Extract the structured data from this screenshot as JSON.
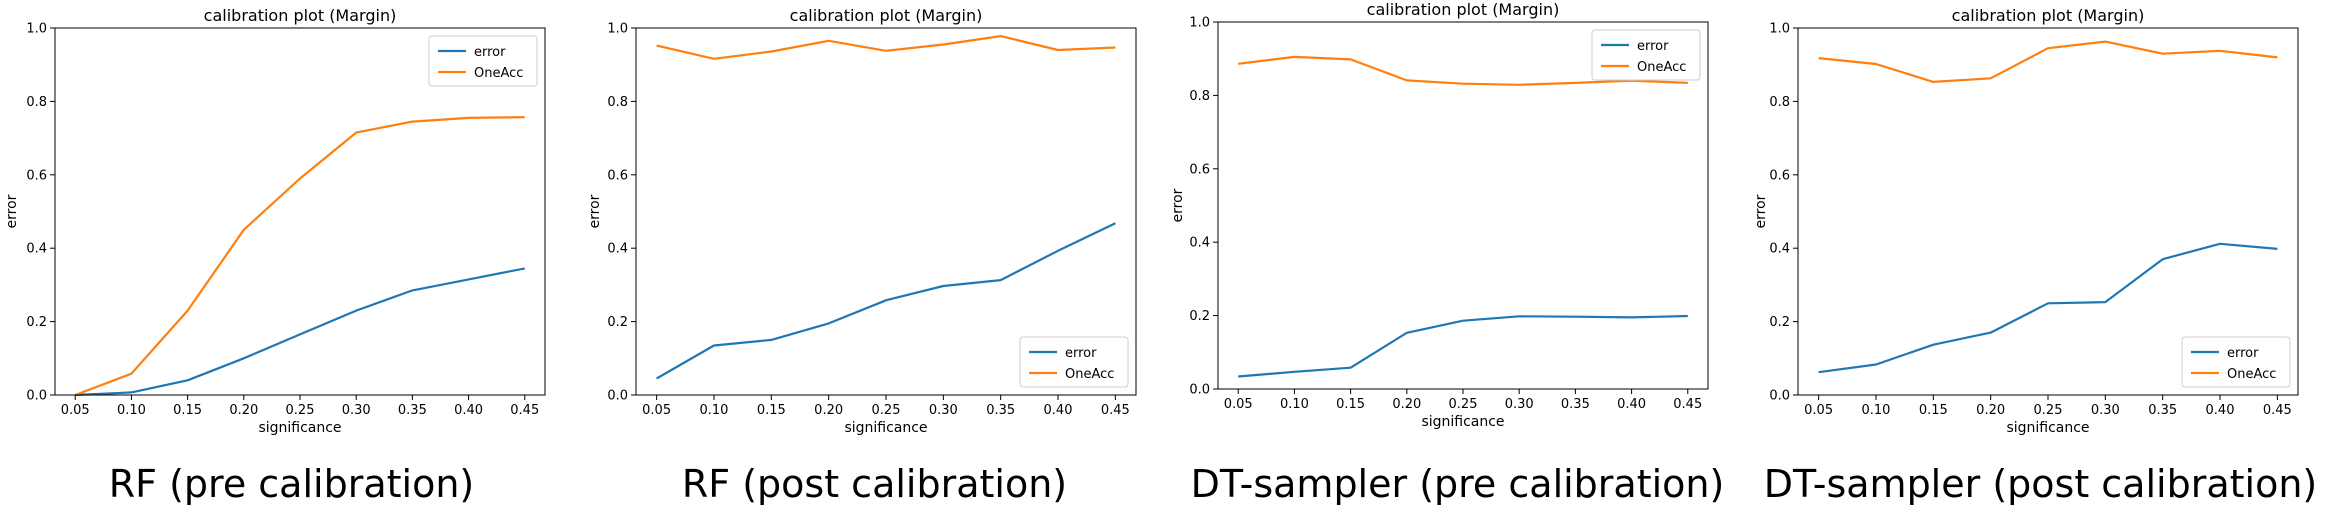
{
  "colors": {
    "error": "#1f77b4",
    "OneAcc": "#ff7f0e"
  },
  "chart_data": [
    {
      "type": "line",
      "title": "calibration plot (Margin)",
      "xlabel": "significance",
      "ylabel": "error",
      "caption": "RF (pre calibration)",
      "x": [
        0.05,
        0.1,
        0.15,
        0.2,
        0.25,
        0.3,
        0.35,
        0.4,
        0.45
      ],
      "x_ticks": [
        "0.05",
        "0.10",
        "0.15",
        "0.20",
        "0.25",
        "0.30",
        "0.35",
        "0.40",
        "0.45"
      ],
      "ylim": [
        0,
        1
      ],
      "y_ticks": [
        "0.0",
        "0.2",
        "0.4",
        "0.6",
        "0.8",
        "1.0"
      ],
      "legend_loc": "upper-right",
      "series": [
        {
          "name": "error",
          "values": [
            0.0,
            0.007,
            0.04,
            0.1,
            0.165,
            0.23,
            0.285,
            0.315,
            0.345
          ]
        },
        {
          "name": "OneAcc",
          "values": [
            0.0,
            0.058,
            0.23,
            0.45,
            0.59,
            0.715,
            0.745,
            0.755,
            0.757
          ]
        }
      ]
    },
    {
      "type": "line",
      "title": "calibration plot (Margin)",
      "xlabel": "significance",
      "ylabel": "error",
      "caption": "RF (post calibration)",
      "x": [
        0.05,
        0.1,
        0.15,
        0.2,
        0.25,
        0.3,
        0.35,
        0.4,
        0.45
      ],
      "x_ticks": [
        "0.05",
        "0.10",
        "0.15",
        "0.20",
        "0.25",
        "0.30",
        "0.35",
        "0.40",
        "0.45"
      ],
      "ylim": [
        0,
        1
      ],
      "y_ticks": [
        "0.0",
        "0.2",
        "0.4",
        "0.6",
        "0.8",
        "1.0"
      ],
      "legend_loc": "lower-right",
      "series": [
        {
          "name": "error",
          "values": [
            0.045,
            0.135,
            0.15,
            0.195,
            0.258,
            0.297,
            0.313,
            0.393,
            0.468
          ]
        },
        {
          "name": "OneAcc",
          "values": [
            0.952,
            0.916,
            0.936,
            0.965,
            0.938,
            0.955,
            0.978,
            0.94,
            0.947
          ]
        }
      ]
    },
    {
      "type": "line",
      "title": "calibration plot (Margin)",
      "xlabel": "significance",
      "ylabel": "error",
      "caption": "DT-sampler (pre calibration)",
      "x": [
        0.05,
        0.1,
        0.15,
        0.2,
        0.25,
        0.3,
        0.35,
        0.4,
        0.45
      ],
      "x_ticks": [
        "0.05",
        "0.10",
        "0.15",
        "0.20",
        "0.25",
        "0.30",
        "0.35",
        "0.40",
        "0.45"
      ],
      "ylim": [
        0,
        1
      ],
      "y_ticks": [
        "0.0",
        "0.2",
        "0.4",
        "0.6",
        "0.8",
        "1.0"
      ],
      "legend_loc": "upper-right",
      "series": [
        {
          "name": "error",
          "values": [
            0.034,
            0.047,
            0.058,
            0.153,
            0.186,
            0.198,
            0.197,
            0.195,
            0.199
          ]
        },
        {
          "name": "OneAcc",
          "values": [
            0.886,
            0.905,
            0.898,
            0.841,
            0.832,
            0.829,
            0.834,
            0.84,
            0.834
          ]
        }
      ]
    },
    {
      "type": "line",
      "title": "calibration plot (Margin)",
      "xlabel": "significance",
      "ylabel": "error",
      "caption": "DT-sampler (post calibration)",
      "x": [
        0.05,
        0.1,
        0.15,
        0.2,
        0.25,
        0.3,
        0.35,
        0.4,
        0.45
      ],
      "x_ticks": [
        "0.05",
        "0.10",
        "0.15",
        "0.20",
        "0.25",
        "0.30",
        "0.35",
        "0.40",
        "0.45"
      ],
      "ylim": [
        0,
        1
      ],
      "y_ticks": [
        "0.0",
        "0.2",
        "0.4",
        "0.6",
        "0.8",
        "1.0"
      ],
      "legend_loc": "lower-right",
      "series": [
        {
          "name": "error",
          "values": [
            0.062,
            0.083,
            0.137,
            0.17,
            0.25,
            0.253,
            0.37,
            0.412,
            0.398
          ]
        },
        {
          "name": "OneAcc",
          "values": [
            0.918,
            0.902,
            0.853,
            0.863,
            0.945,
            0.963,
            0.93,
            0.938,
            0.92
          ]
        }
      ]
    }
  ]
}
